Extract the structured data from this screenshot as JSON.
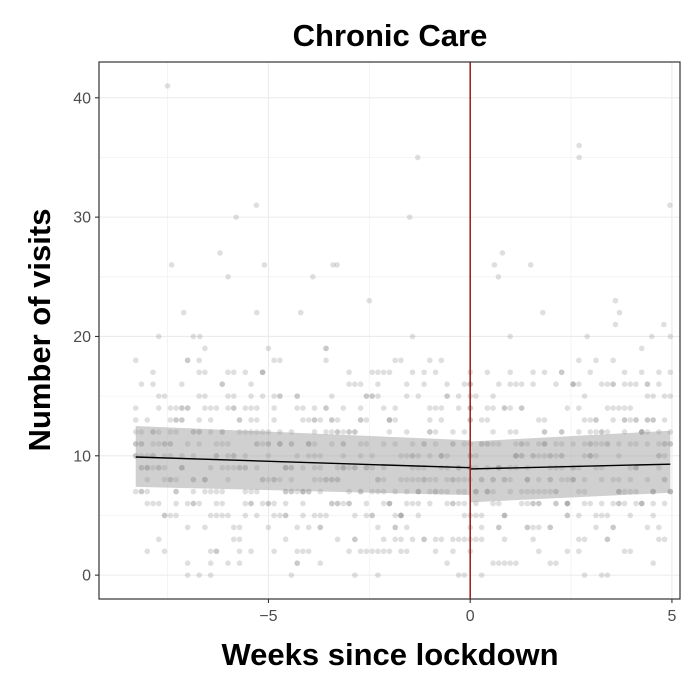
{
  "chart_data": {
    "type": "scatter",
    "title": "Chronic Care",
    "xlabel": "Weeks since lockdown",
    "ylabel": "Number of visits",
    "xlim": [
      -9.2,
      5.2
    ],
    "ylim": [
      -2.0,
      43.0
    ],
    "x_ticks": [
      -5,
      0,
      5
    ],
    "x_tick_labels": [
      "−5",
      "0",
      "5"
    ],
    "y_ticks": [
      0,
      10,
      20,
      30,
      40
    ],
    "y_tick_labels": [
      "0",
      "10",
      "20",
      "30",
      "40"
    ],
    "grid": true,
    "legend": "none",
    "cutoff_x": 0,
    "fit_lines": [
      {
        "segment": "pre",
        "x": [
          -8.29,
          0
        ],
        "y": [
          9.9,
          9.0
        ],
        "ci_lower": [
          7.4,
          6.7
        ],
        "ci_upper": [
          12.5,
          11.3
        ]
      },
      {
        "segment": "post",
        "x": [
          0,
          4.96
        ],
        "y": [
          8.9,
          9.3
        ],
        "ci_lower": [
          6.1,
          6.9
        ],
        "ci_upper": [
          11.2,
          12.1
        ]
      }
    ],
    "outliers": [
      {
        "x": -7.5,
        "y": 41
      },
      {
        "x": -7.4,
        "y": 26
      },
      {
        "x": -7.1,
        "y": 22
      },
      {
        "x": -6.7,
        "y": 20
      },
      {
        "x": -6.2,
        "y": 27
      },
      {
        "x": -6.0,
        "y": 25
      },
      {
        "x": -5.8,
        "y": 30
      },
      {
        "x": -5.3,
        "y": 31
      },
      {
        "x": -5.1,
        "y": 26
      },
      {
        "x": -4.2,
        "y": 22
      },
      {
        "x": -3.9,
        "y": 25
      },
      {
        "x": -3.4,
        "y": 26
      },
      {
        "x": -3.3,
        "y": 26
      },
      {
        "x": -2.5,
        "y": 23
      },
      {
        "x": -1.5,
        "y": 30
      },
      {
        "x": -1.3,
        "y": 35
      },
      {
        "x": 0.6,
        "y": 26
      },
      {
        "x": 0.8,
        "y": 27
      },
      {
        "x": 0.7,
        "y": 25
      },
      {
        "x": 1.5,
        "y": 26
      },
      {
        "x": 2.7,
        "y": 36
      },
      {
        "x": 2.7,
        "y": 35
      },
      {
        "x": 3.6,
        "y": 23
      },
      {
        "x": 3.7,
        "y": 22
      },
      {
        "x": 3.6,
        "y": 21
      },
      {
        "x": 4.8,
        "y": 21
      },
      {
        "x": 4.95,
        "y": 31
      },
      {
        "x": 1.8,
        "y": 22
      },
      {
        "x": 4.5,
        "y": 20
      },
      {
        "x": 2.9,
        "y": 20
      }
    ]
  }
}
